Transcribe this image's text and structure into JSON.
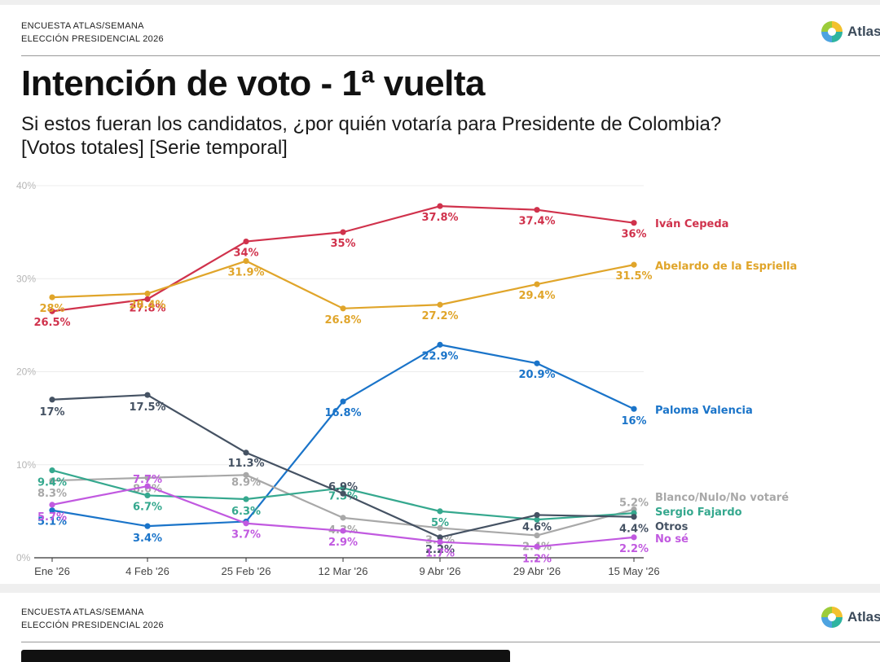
{
  "header": {
    "kicker_line1": "ENCUESTA ATLAS/SEMANA",
    "kicker_line2": "ELECCIÓN PRESIDENCIAL 2026",
    "logo_text": "Atlas"
  },
  "title": "Intención de voto - 1ª vuelta",
  "subtitle_line1": "Si estos fueran los candidatos, ¿por quién votaría para Presidente de Colombia?",
  "subtitle_line2": "[Votos totales] [Serie temporal]",
  "chart_data": {
    "type": "line",
    "categories": [
      "Ene '26",
      "4 Feb '26",
      "25 Feb '26",
      "12 Mar '26",
      "9 Abr '26",
      "29 Abr '26",
      "15 May '26"
    ],
    "ylim": [
      0,
      40
    ],
    "yticks": [
      "0%",
      "10%",
      "20%",
      "30%",
      "40%"
    ],
    "grid": true,
    "legend": "right",
    "series": [
      {
        "name": "Iván Cepeda",
        "color": "#d0324c",
        "values": [
          26.5,
          27.8,
          34,
          35,
          37.8,
          37.4,
          36
        ],
        "labels": [
          "26.5%",
          "27.8%",
          "34%",
          "35%",
          "37.8%",
          "37.4%",
          "36%"
        ]
      },
      {
        "name": "Abelardo de la Espriella",
        "color": "#e0a52a",
        "values": [
          28,
          28.4,
          31.9,
          26.8,
          27.2,
          29.4,
          31.5
        ],
        "labels": [
          "28%",
          "28.4%",
          "31.9%",
          "26.8%",
          "27.2%",
          "29.4%",
          "31.5%"
        ]
      },
      {
        "name": "Paloma Valencia",
        "color": "#1a74c9",
        "values": [
          5.1,
          3.4,
          3.9,
          16.8,
          22.9,
          20.9,
          16
        ],
        "labels": [
          "5.1%",
          "3.4%",
          "",
          "16.8%",
          "22.9%",
          "20.9%",
          "16%"
        ]
      },
      {
        "name": "Blanco/Nulo/No votaré",
        "color": "#a8a8a8",
        "values": [
          8.3,
          8.6,
          8.9,
          4.3,
          3.2,
          2.4,
          5.2
        ],
        "labels": [
          "8.3%",
          "8.6%",
          "8.9%",
          "4.3%",
          "3.2%",
          "2.4%",
          "5.2%"
        ]
      },
      {
        "name": "Sergio Fajardo",
        "color": "#35a88e",
        "values": [
          9.4,
          6.7,
          6.3,
          7.5,
          5,
          4.1,
          4.8
        ],
        "labels": [
          "9.4%",
          "6.7%",
          "6.3%",
          "7.5%",
          "5%",
          "",
          ""
        ]
      },
      {
        "name": "Otros",
        "color": "#455263",
        "values": [
          17,
          17.5,
          11.3,
          6.9,
          2.2,
          4.6,
          4.4
        ],
        "labels": [
          "17%",
          "17.5%",
          "11.3%",
          "6.9%",
          "2.2%",
          "4.6%",
          "4.4%"
        ]
      },
      {
        "name": "No sé",
        "color": "#c159e0",
        "values": [
          5.7,
          7.7,
          3.7,
          2.9,
          1.7,
          1.2,
          2.2
        ],
        "labels": [
          "5.7%",
          "7.7%",
          "3.7%",
          "2.9%",
          "1.7%",
          "1.2%",
          "2.2%"
        ]
      }
    ]
  }
}
